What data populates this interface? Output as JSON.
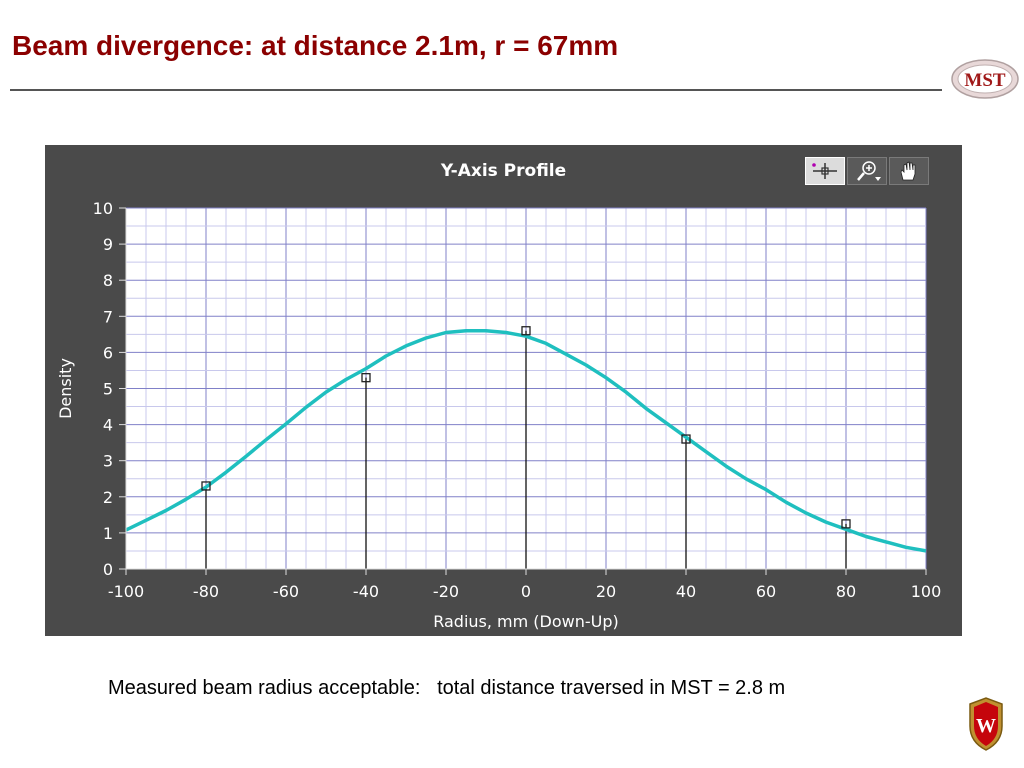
{
  "slide": {
    "title": "Beam divergence:  at distance 2.1m, r = 67mm",
    "logo_text": "MST",
    "crest_text": "W",
    "caption": "Measured beam radius acceptable:   total distance traversed in MST = 2.8 m"
  },
  "toolbar": {
    "buttons": [
      {
        "icon": "crosshair-icon",
        "active": true
      },
      {
        "icon": "zoom-icon",
        "active": false
      },
      {
        "icon": "pan-hand-icon",
        "active": false
      }
    ]
  },
  "colors": {
    "title": "#8b0000",
    "curve": "#1fbfbf",
    "panel": "#4a4a4a",
    "plot_bg": "#ffffff",
    "major_grid": "#8080c8",
    "minor_grid": "#c8c8ec"
  },
  "chart_data": {
    "type": "line",
    "title": "Y-Axis Profile",
    "xlabel": "Radius, mm (Down-Up)",
    "ylabel": "Density",
    "xlim": [
      -100,
      100
    ],
    "ylim": [
      0,
      10
    ],
    "xticks": [
      -100,
      -80,
      -60,
      -40,
      -20,
      0,
      20,
      40,
      60,
      80,
      100
    ],
    "yticks": [
      0,
      1,
      2,
      3,
      4,
      5,
      6,
      7,
      8,
      9,
      10
    ],
    "grid": true,
    "curve": {
      "x": [
        -100,
        -95,
        -90,
        -85,
        -80,
        -75,
        -70,
        -65,
        -60,
        -55,
        -50,
        -45,
        -40,
        -35,
        -30,
        -25,
        -20,
        -15,
        -10,
        -5,
        0,
        5,
        10,
        15,
        20,
        25,
        30,
        35,
        40,
        45,
        50,
        55,
        60,
        65,
        70,
        75,
        80,
        85,
        90,
        95,
        100
      ],
      "y": [
        1.08,
        1.35,
        1.62,
        1.93,
        2.27,
        2.68,
        3.12,
        3.58,
        4.02,
        4.48,
        4.9,
        5.25,
        5.55,
        5.9,
        6.18,
        6.4,
        6.55,
        6.6,
        6.6,
        6.55,
        6.45,
        6.25,
        5.95,
        5.65,
        5.3,
        4.9,
        4.45,
        4.05,
        3.65,
        3.25,
        2.85,
        2.5,
        2.2,
        1.85,
        1.55,
        1.3,
        1.1,
        0.9,
        0.75,
        0.6,
        0.5
      ]
    },
    "measured_points": {
      "x": [
        -80,
        -40,
        0,
        40,
        80
      ],
      "y": [
        2.3,
        5.3,
        6.6,
        3.6,
        1.25
      ]
    }
  }
}
